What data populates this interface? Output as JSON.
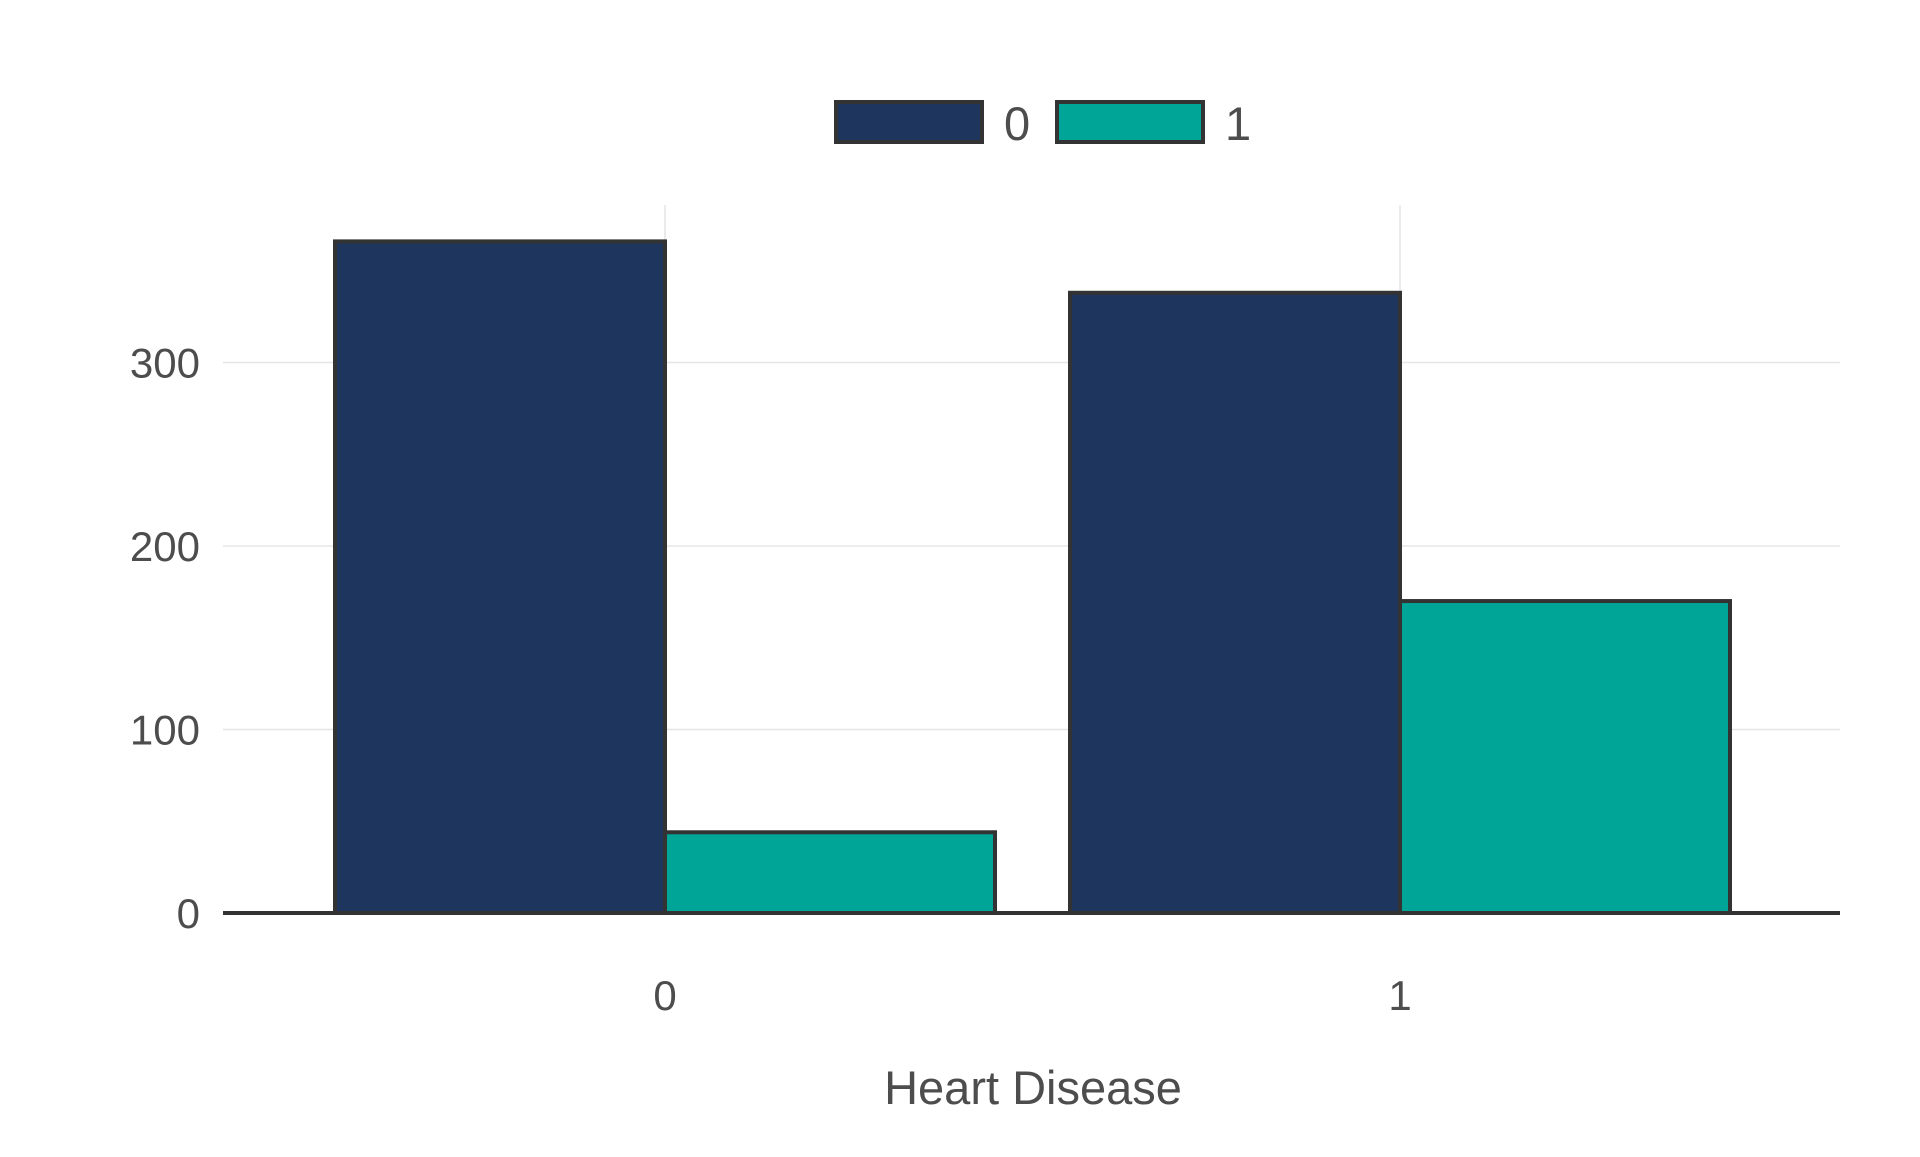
{
  "chart_data": {
    "type": "bar",
    "layout": "grouped",
    "title": "",
    "xlabel": "Heart Disease",
    "ylabel": "",
    "categories": [
      "0",
      "1"
    ],
    "series": [
      {
        "name": "0",
        "color": "#1e355e",
        "values": [
          366,
          338
        ]
      },
      {
        "name": "1",
        "color": "#00a598",
        "values": [
          44,
          170
        ]
      }
    ],
    "ylim": [
      0,
      385
    ],
    "yticks": [
      0,
      100,
      200,
      300
    ],
    "grid": true,
    "legend_position": "top",
    "bar_outline_color": "#333333"
  }
}
